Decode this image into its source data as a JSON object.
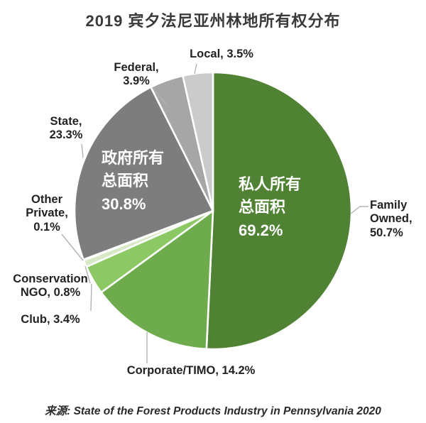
{
  "chart_data": {
    "type": "pie",
    "title": "2019 宾夕法尼亚州林地所有权分布",
    "start_angle": "12-oclock",
    "direction": "clockwise",
    "slices": [
      {
        "label": "Family Owned",
        "value": 50.7,
        "color": "#4f8232",
        "group": "private"
      },
      {
        "label": "Corporate/TIMO",
        "value": 14.2,
        "color": "#6dab4d",
        "group": "private"
      },
      {
        "label": "Club",
        "value": 3.4,
        "color": "#8cc863",
        "group": "private"
      },
      {
        "label": "Conservation NGO",
        "value": 0.8,
        "color": "#d6e8c6",
        "group": "private"
      },
      {
        "label": "Other Private",
        "value": 0.1,
        "color": "#e8f2e0",
        "group": "private"
      },
      {
        "label": "State",
        "value": 23.3,
        "color": "#7d7d7d",
        "group": "government"
      },
      {
        "label": "Federal",
        "value": 3.9,
        "color": "#a6a6a6",
        "group": "government"
      },
      {
        "label": "Local",
        "value": 3.5,
        "color": "#cbcbcb",
        "group": "government"
      }
    ],
    "group_totals": {
      "government": 30.8,
      "private": 69.2
    },
    "legend_position": "none",
    "colors": {
      "government_gray": "#7d7d7d",
      "private_green": "#4f8232"
    }
  },
  "callouts": {
    "local": "Local, 3.5%",
    "federal": "Federal,\n3.9%",
    "state": "State,\n23.3%",
    "other_private": "Other\nPrivate,\n0.1%",
    "conservation_ngo": "Conservation\nNGO, 0.8%",
    "club": "Club, 3.4%",
    "corporate": "Corporate/TIMO, 14.2%",
    "family": "Family\nOwned,\n50.7%"
  },
  "center_labels": {
    "government": "政府所有\n总面积\n30.8%",
    "private": "私人所有\n总面积\n69.2%"
  },
  "source": "来源: State of the Forest Products Industry in Pennsylvania 2020"
}
